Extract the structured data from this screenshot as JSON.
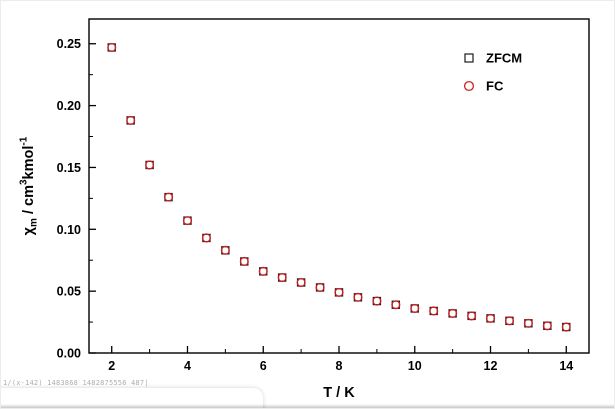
{
  "page": {
    "background": "#ffffff"
  },
  "watermark": {
    "text": "1/(x-142) 1483868 1482875556 487|"
  },
  "chart_data": {
    "type": "scatter",
    "title": "",
    "xlabel": "T / K",
    "ylabel": "χm / cm3kmol-1",
    "ylabel_segments": [
      {
        "t": "χ",
        "kind": "base"
      },
      {
        "t": "m",
        "kind": "sub"
      },
      {
        "t": " / cm",
        "kind": "base"
      },
      {
        "t": "3",
        "kind": "sup"
      },
      {
        "t": "kmol",
        "kind": "base"
      },
      {
        "t": "-1",
        "kind": "sup"
      }
    ],
    "x": [
      2,
      2.5,
      3,
      3.5,
      4,
      4.5,
      5,
      5.5,
      6,
      6.5,
      7,
      7.5,
      8,
      8.5,
      9,
      9.5,
      10,
      10.5,
      11,
      11.5,
      12,
      12.5,
      13,
      13.5,
      14
    ],
    "series": [
      {
        "name": "ZFCM",
        "marker": "open-square",
        "color": "#1a1a1a",
        "values": [
          0.247,
          0.188,
          0.152,
          0.126,
          0.107,
          0.093,
          0.083,
          0.074,
          0.066,
          0.061,
          0.057,
          0.053,
          0.049,
          0.045,
          0.042,
          0.039,
          0.036,
          0.034,
          0.032,
          0.03,
          0.028,
          0.026,
          0.024,
          0.022,
          0.021
        ]
      },
      {
        "name": "FC",
        "marker": "open-circle",
        "color": "#cc2020",
        "values": [
          0.247,
          0.188,
          0.152,
          0.126,
          0.107,
          0.093,
          0.083,
          0.074,
          0.066,
          0.061,
          0.057,
          0.053,
          0.049,
          0.045,
          0.042,
          0.039,
          0.036,
          0.034,
          0.032,
          0.03,
          0.028,
          0.026,
          0.024,
          0.022,
          0.021
        ]
      }
    ],
    "xlim": [
      1.4,
      14.6
    ],
    "ylim": [
      0,
      0.27
    ],
    "xticks": [
      2,
      4,
      6,
      8,
      10,
      12,
      14
    ],
    "yticks": [
      0.0,
      0.05,
      0.1,
      0.15,
      0.2,
      0.25
    ],
    "xminor": [
      3,
      5,
      7,
      9,
      11,
      13
    ],
    "yminor": [
      0.025,
      0.075,
      0.125,
      0.175,
      0.225
    ],
    "legend_position": "top-right",
    "grid": false,
    "axis_color": "#000000",
    "tick_direction": "in"
  }
}
